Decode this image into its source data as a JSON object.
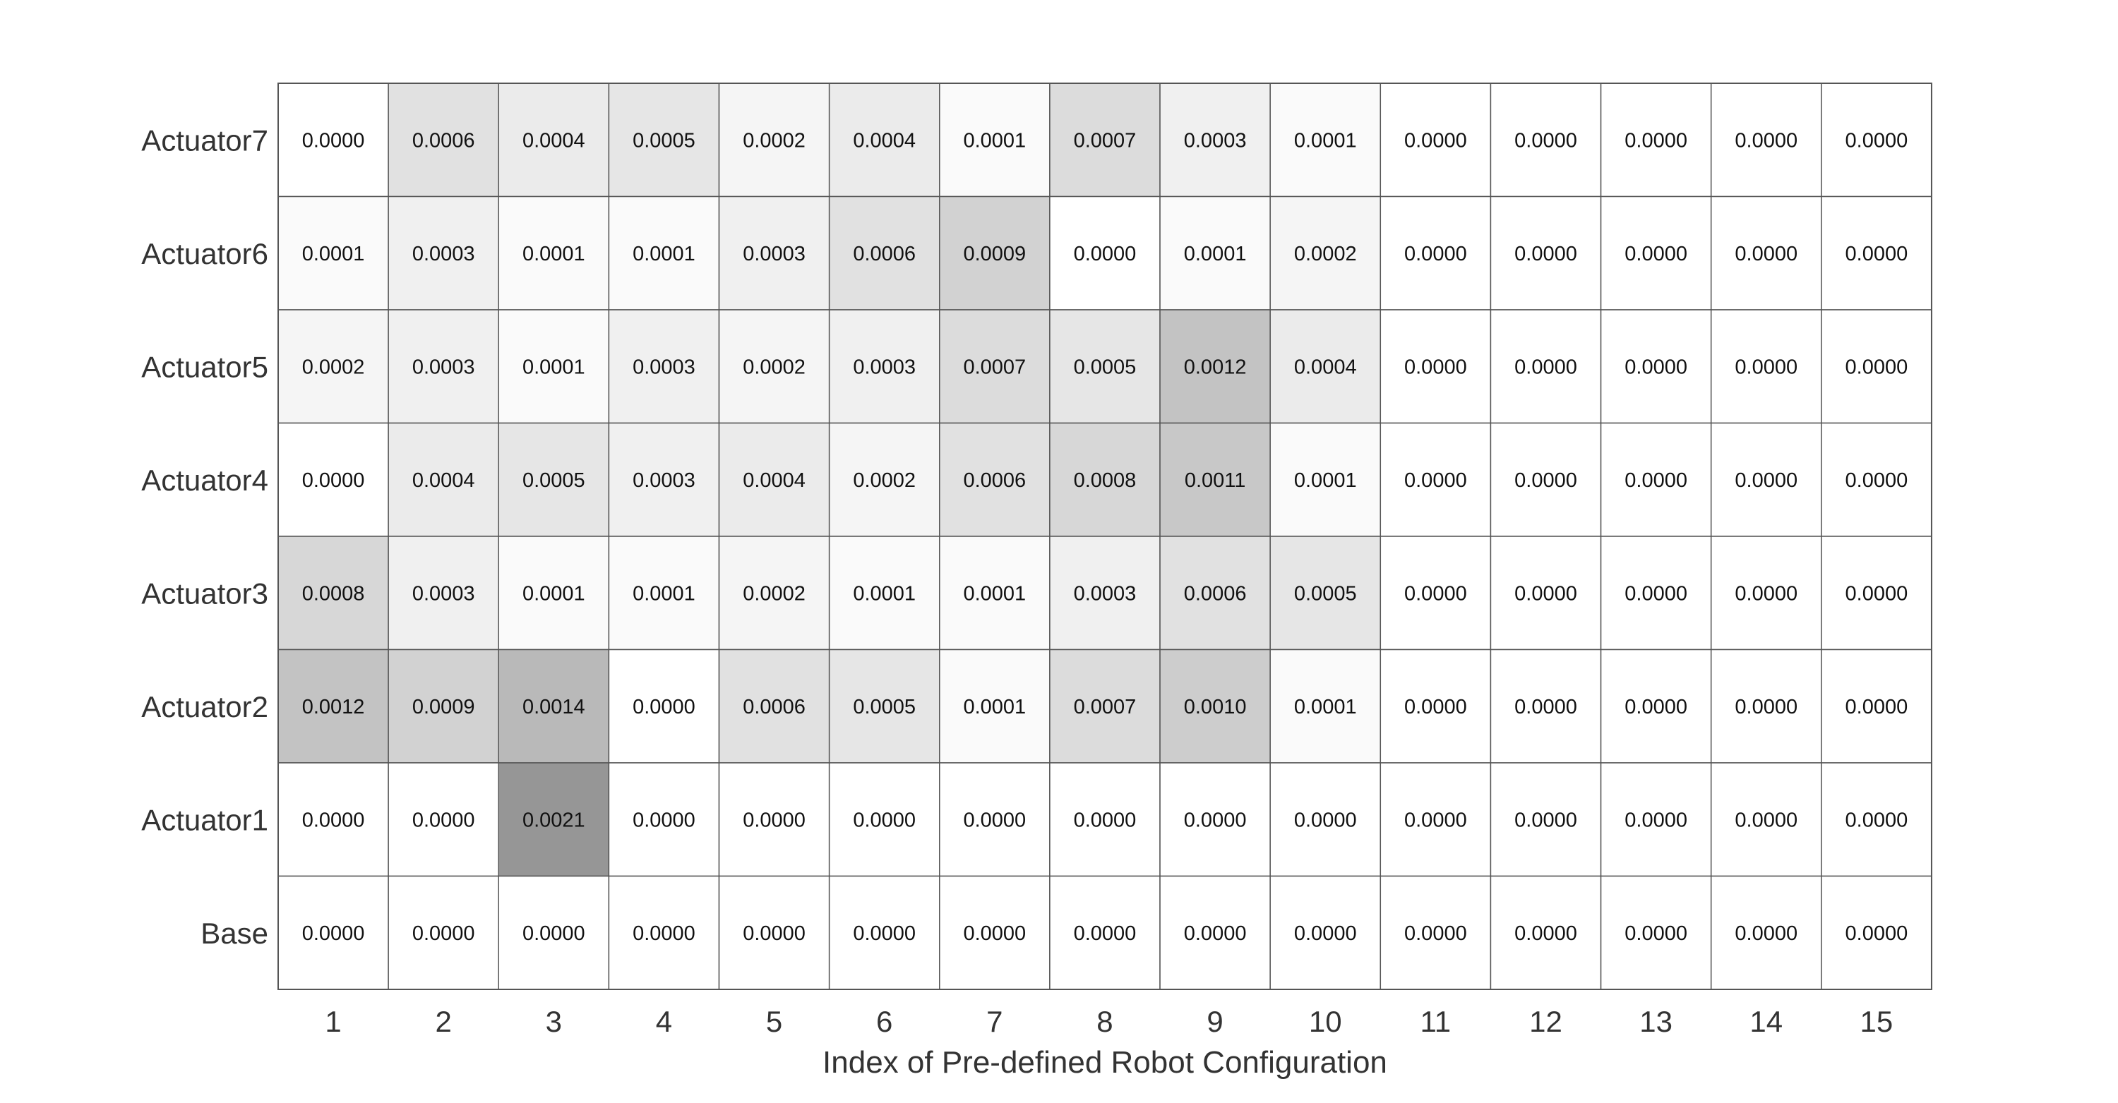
{
  "chart_data": {
    "type": "heatmap",
    "title": "",
    "xlabel": "Index of Pre-defined Robot Configuration",
    "ylabel": "",
    "x": [
      "1",
      "2",
      "3",
      "4",
      "5",
      "6",
      "7",
      "8",
      "9",
      "10",
      "11",
      "12",
      "13",
      "14",
      "15"
    ],
    "y": [
      "Actuator7",
      "Actuator6",
      "Actuator5",
      "Actuator4",
      "Actuator3",
      "Actuator2",
      "Actuator1",
      "Base"
    ],
    "values": [
      [
        "0.0000",
        "0.0006",
        "0.0004",
        "0.0005",
        "0.0002",
        "0.0004",
        "0.0001",
        "0.0007",
        "0.0003",
        "0.0001",
        "0.0000",
        "0.0000",
        "0.0000",
        "0.0000",
        "0.0000"
      ],
      [
        "0.0001",
        "0.0003",
        "0.0001",
        "0.0001",
        "0.0003",
        "0.0006",
        "0.0009",
        "0.0000",
        "0.0001",
        "0.0002",
        "0.0000",
        "0.0000",
        "0.0000",
        "0.0000",
        "0.0000"
      ],
      [
        "0.0002",
        "0.0003",
        "0.0001",
        "0.0003",
        "0.0002",
        "0.0003",
        "0.0007",
        "0.0005",
        "0.0012",
        "0.0004",
        "0.0000",
        "0.0000",
        "0.0000",
        "0.0000",
        "0.0000"
      ],
      [
        "0.0000",
        "0.0004",
        "0.0005",
        "0.0003",
        "0.0004",
        "0.0002",
        "0.0006",
        "0.0008",
        "0.0011",
        "0.0001",
        "0.0000",
        "0.0000",
        "0.0000",
        "0.0000",
        "0.0000"
      ],
      [
        "0.0008",
        "0.0003",
        "0.0001",
        "0.0001",
        "0.0002",
        "0.0001",
        "0.0001",
        "0.0003",
        "0.0006",
        "0.0005",
        "0.0000",
        "0.0000",
        "0.0000",
        "0.0000",
        "0.0000"
      ],
      [
        "0.0012",
        "0.0009",
        "0.0014",
        "0.0000",
        "0.0006",
        "0.0005",
        "0.0001",
        "0.0007",
        "0.0010",
        "0.0001",
        "0.0000",
        "0.0000",
        "0.0000",
        "0.0000",
        "0.0000"
      ],
      [
        "0.0000",
        "0.0000",
        "0.0021",
        "0.0000",
        "0.0000",
        "0.0000",
        "0.0000",
        "0.0000",
        "0.0000",
        "0.0000",
        "0.0000",
        "0.0000",
        "0.0000",
        "0.0000",
        "0.0000"
      ],
      [
        "0.0000",
        "0.0000",
        "0.0000",
        "0.0000",
        "0.0000",
        "0.0000",
        "0.0000",
        "0.0000",
        "0.0000",
        "0.0000",
        "0.0000",
        "0.0000",
        "0.0000",
        "0.0000",
        "0.0000"
      ]
    ],
    "colormap": "white-to-gray",
    "color_min": "#ffffff",
    "color_max": "#969696",
    "grid": true,
    "legend": "none"
  }
}
